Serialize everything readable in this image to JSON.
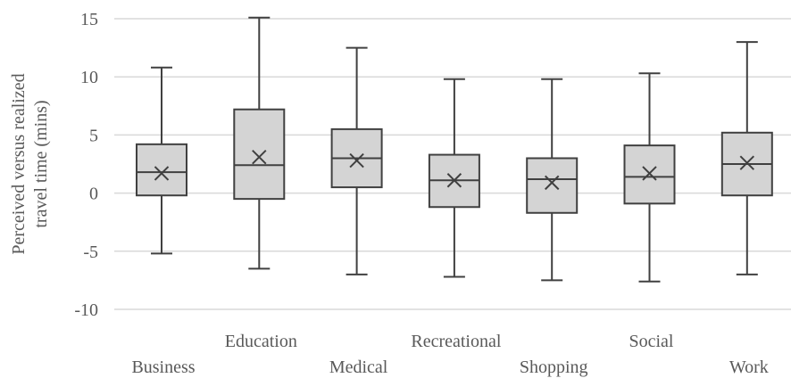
{
  "chart_data": {
    "type": "boxplot",
    "title": "",
    "xlabel": "",
    "ylabel_lines": [
      "Perceived versus realized",
      "travel time  (mins)"
    ],
    "ylim": [
      -10,
      15
    ],
    "yticks": [
      -10,
      -5,
      0,
      5,
      10,
      15
    ],
    "grid": true,
    "categories": [
      "Business",
      "Education",
      "Medical",
      "Recreational",
      "Shopping",
      "Social",
      "Work"
    ],
    "boxes": [
      {
        "category": "Business",
        "min": -5.2,
        "q1": -0.2,
        "median": 1.8,
        "q3": 4.2,
        "max": 10.8,
        "mean": 1.7
      },
      {
        "category": "Education",
        "min": -6.5,
        "q1": -0.5,
        "median": 2.4,
        "q3": 7.2,
        "max": 15.1,
        "mean": 3.1
      },
      {
        "category": "Medical",
        "min": -7.0,
        "q1": 0.5,
        "median": 3.0,
        "q3": 5.5,
        "max": 12.5,
        "mean": 2.8
      },
      {
        "category": "Recreational",
        "min": -7.2,
        "q1": -1.2,
        "median": 1.1,
        "q3": 3.3,
        "max": 9.8,
        "mean": 1.1
      },
      {
        "category": "Shopping",
        "min": -7.5,
        "q1": -1.7,
        "median": 1.2,
        "q3": 3.0,
        "max": 9.8,
        "mean": 0.9
      },
      {
        "category": "Social",
        "min": -7.6,
        "q1": -0.9,
        "median": 1.4,
        "q3": 4.1,
        "max": 10.3,
        "mean": 1.7
      },
      {
        "category": "Work",
        "min": -7.0,
        "q1": -0.2,
        "median": 2.5,
        "q3": 5.2,
        "max": 13.0,
        "mean": 2.6
      }
    ],
    "colors": {
      "box_fill": "#d4d4d4",
      "box_stroke": "#404040",
      "grid": "#d9d9d9",
      "text": "#595959"
    }
  }
}
